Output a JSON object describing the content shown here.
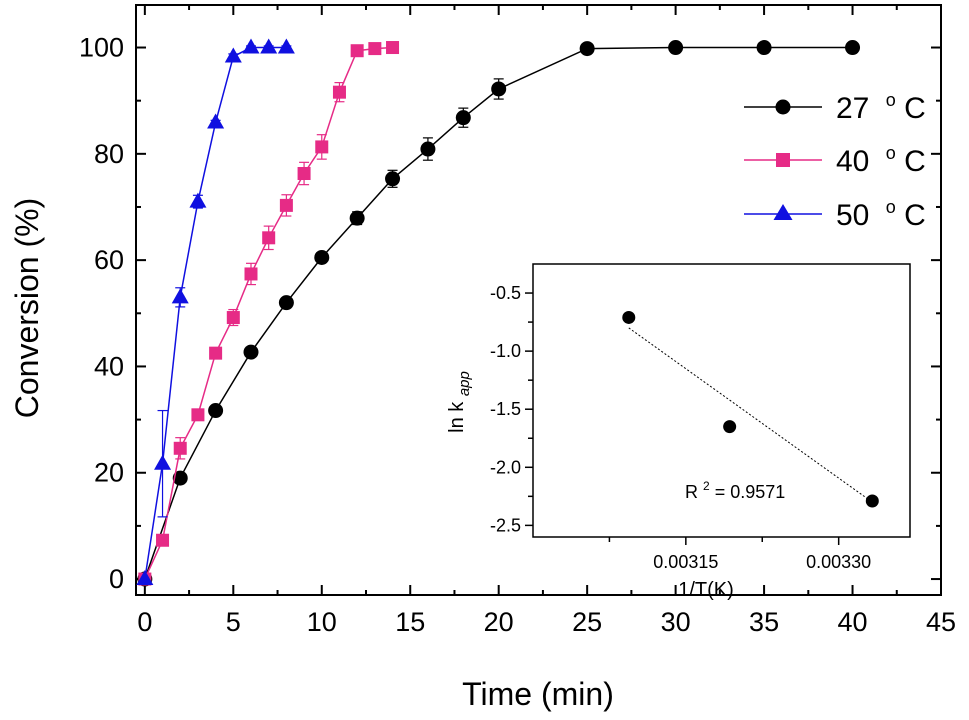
{
  "chart_data": [
    {
      "type": "line",
      "xlabel": "Time (min)",
      "ylabel": "Conversion (%)",
      "xlim": [
        -0.5,
        45
      ],
      "ylim": [
        -3,
        108
      ],
      "xticks": [
        "0",
        "5",
        "10",
        "15",
        "20",
        "25",
        "30",
        "35",
        "40",
        "45"
      ],
      "yticks": [
        "0",
        "20",
        "40",
        "60",
        "80",
        "100"
      ],
      "grid": false,
      "legend": "top-right",
      "series": [
        {
          "name": "27 °C",
          "name_value": "27",
          "name_unit_sup": "o",
          "name_unit": "C",
          "color": "#000000",
          "marker": "circle",
          "x": [
            0,
            2,
            4,
            6,
            8,
            10,
            12,
            14,
            16,
            18,
            20,
            25,
            30,
            35,
            40
          ],
          "y": [
            0,
            19,
            31.7,
            42.7,
            52,
            60.5,
            67.9,
            75.3,
            80.9,
            86.8,
            92.2,
            99.8,
            100,
            100,
            100
          ],
          "error": [
            0,
            0.6,
            0.6,
            0.6,
            0.8,
            0.9,
            1.2,
            1.6,
            2.1,
            1.8,
            1.9,
            0.5,
            0.3,
            0.3,
            0.6
          ]
        },
        {
          "name": "40 °C",
          "name_value": "40",
          "name_unit_sup": "o",
          "name_unit": "C",
          "color": "#e62b86",
          "marker": "square",
          "x": [
            0,
            1,
            2,
            3,
            4,
            5,
            6,
            7,
            8,
            9,
            10,
            11,
            12,
            13,
            14
          ],
          "y": [
            0,
            7.3,
            24.6,
            30.9,
            42.5,
            49.2,
            57.4,
            64.2,
            70.3,
            76.3,
            81.3,
            91.6,
            99.4,
            99.8,
            100
          ],
          "error": [
            0,
            0.4,
            2.0,
            0.5,
            0.5,
            1.5,
            2.0,
            2.2,
            2.0,
            2.1,
            2.3,
            1.8,
            0.4,
            0.3,
            0.3
          ]
        },
        {
          "name": "50 °C",
          "name_value": "50",
          "name_unit_sup": "o",
          "name_unit": "C",
          "color": "#1010e0",
          "marker": "triangle",
          "x": [
            0,
            1,
            2,
            3,
            4,
            5,
            6,
            7,
            8
          ],
          "y": [
            0,
            21.7,
            53,
            71,
            85.9,
            98.3,
            100,
            100,
            100
          ],
          "error": [
            0,
            10,
            1.8,
            1.2,
            0.4,
            0.5,
            0.3,
            0.3,
            0.3
          ]
        }
      ]
    },
    {
      "type": "scatter",
      "xlabel": "1/T(K)",
      "ylabel": "ln k",
      "ylabel_sub": "app",
      "xlim": [
        0.003,
        0.00337
      ],
      "ylim": [
        -2.6,
        -0.25
      ],
      "xticks": [
        0.00315,
        0.0033
      ],
      "xtick_labels": [
        "0.00315",
        "0.00330"
      ],
      "yticks": [
        -0.5,
        -1.0,
        -1.5,
        -2.0,
        -2.5
      ],
      "ytick_labels": [
        "-0.5",
        "-1.0",
        "-1.5",
        "-2.0",
        "-2.5"
      ],
      "grid": false,
      "points": {
        "x": [
          0.003094,
          0.003193,
          0.003333
        ],
        "y": [
          -0.71,
          -1.65,
          -2.29
        ]
      },
      "fit_line": {
        "style": "dotted",
        "x": [
          0.003094,
          0.003333
        ],
        "y": [
          -0.8,
          -2.3
        ]
      },
      "annotation": {
        "text_prefix": "R",
        "sup": "2",
        "text_suffix": " = 0.9571"
      }
    }
  ]
}
